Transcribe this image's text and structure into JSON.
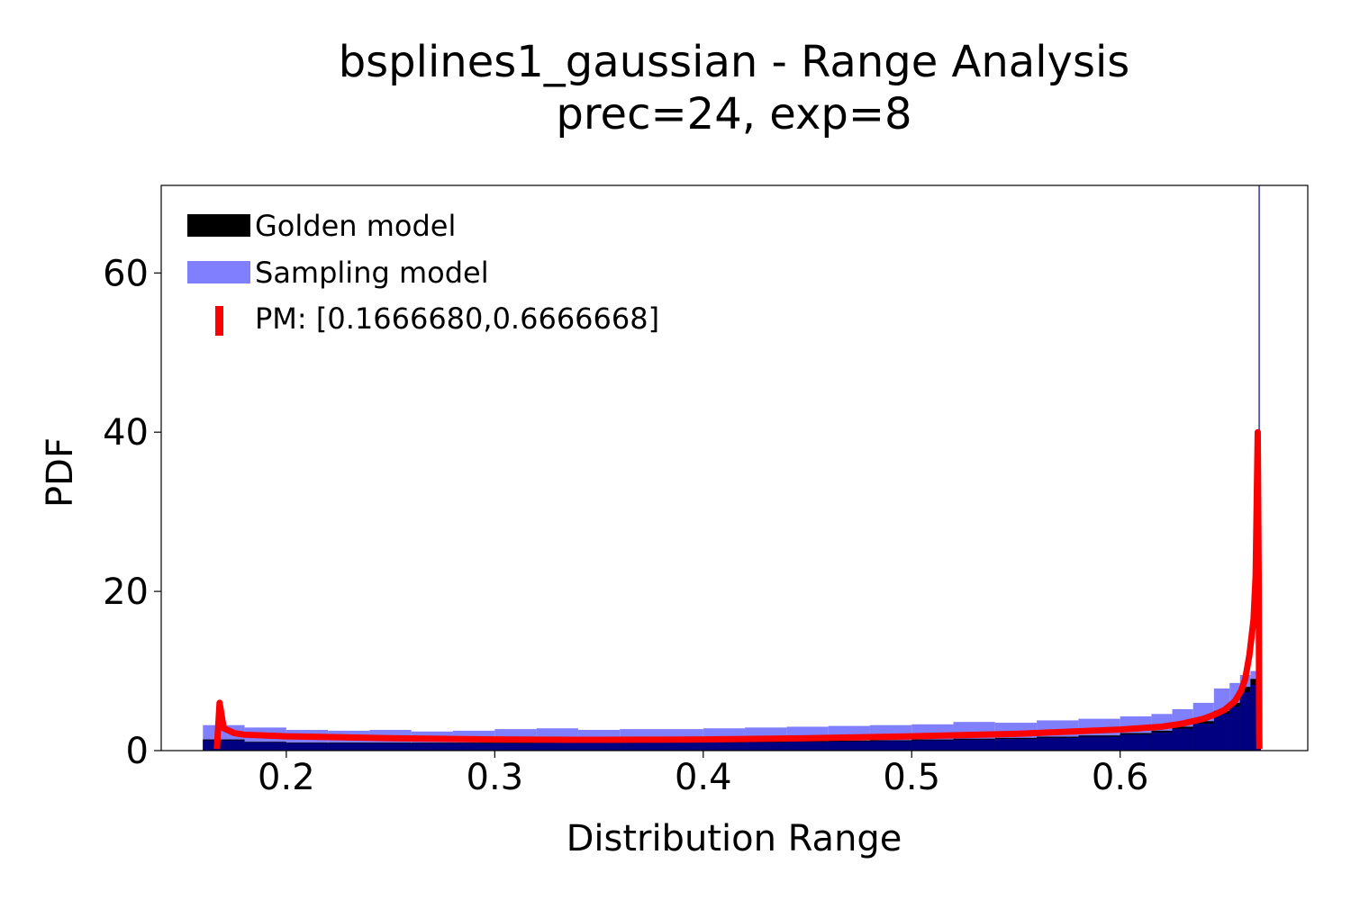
{
  "chart_data": {
    "type": "bar",
    "title": "bsplines1_gaussian - Range Analysis",
    "subtitle": "prec=24, exp=8",
    "xlabel": "Distribution Range",
    "ylabel": "PDF",
    "xlim": [
      0.14,
      0.69
    ],
    "ylim": [
      0,
      71
    ],
    "xticks": [
      0.2,
      0.3,
      0.4,
      0.5,
      0.6
    ],
    "xtick_labels": [
      "0.2",
      "0.3",
      "0.4",
      "0.5",
      "0.6"
    ],
    "yticks": [
      0,
      20,
      40,
      60
    ],
    "ytick_labels": [
      "0",
      "20",
      "40",
      "60"
    ],
    "grid": false,
    "legend_position": "top-left",
    "colors": {
      "golden": "#000000",
      "sampling": "#8080ff",
      "overlap": "#000080",
      "pm": "#ff0000",
      "marker_line": "#000080"
    },
    "vertical_line_x": 0.6667,
    "series": [
      {
        "name": "Golden model",
        "kind": "histogram",
        "x": [
          0.17,
          0.19,
          0.21,
          0.23,
          0.25,
          0.27,
          0.29,
          0.31,
          0.33,
          0.35,
          0.37,
          0.39,
          0.41,
          0.43,
          0.45,
          0.47,
          0.49,
          0.51,
          0.53,
          0.55,
          0.57,
          0.59,
          0.61,
          0.62,
          0.63,
          0.64,
          0.65,
          0.655,
          0.66,
          0.665
        ],
        "values": [
          1.4,
          1.1,
          1.0,
          1.0,
          1.0,
          1.0,
          1.0,
          1.0,
          1.05,
          1.05,
          1.05,
          1.1,
          1.1,
          1.15,
          1.2,
          1.25,
          1.3,
          1.4,
          1.5,
          1.6,
          1.75,
          1.9,
          2.2,
          2.5,
          3.0,
          3.7,
          5.0,
          6.0,
          8.0,
          9.0
        ]
      },
      {
        "name": "Sampling model",
        "kind": "histogram",
        "x": [
          0.17,
          0.19,
          0.21,
          0.23,
          0.25,
          0.27,
          0.29,
          0.31,
          0.33,
          0.35,
          0.37,
          0.39,
          0.41,
          0.43,
          0.45,
          0.47,
          0.49,
          0.51,
          0.53,
          0.55,
          0.57,
          0.59,
          0.61,
          0.62,
          0.63,
          0.64,
          0.65,
          0.655,
          0.66,
          0.665
        ],
        "values": [
          3.2,
          2.9,
          2.6,
          2.5,
          2.6,
          2.4,
          2.5,
          2.7,
          2.8,
          2.6,
          2.7,
          2.7,
          2.8,
          2.9,
          3.0,
          3.1,
          3.2,
          3.3,
          3.6,
          3.5,
          3.8,
          4.0,
          4.3,
          4.6,
          5.2,
          6.0,
          7.8,
          8.5,
          9.5,
          10.0
        ]
      },
      {
        "name": "PM: [0.1666680,0.6666668]",
        "kind": "line",
        "x": [
          0.1667,
          0.168,
          0.17,
          0.175,
          0.18,
          0.19,
          0.2,
          0.25,
          0.3,
          0.35,
          0.4,
          0.45,
          0.5,
          0.55,
          0.6,
          0.62,
          0.63,
          0.64,
          0.645,
          0.65,
          0.655,
          0.658,
          0.66,
          0.662,
          0.664,
          0.665,
          0.666,
          0.6665,
          0.6667,
          0.6668
        ],
        "values": [
          0.2,
          6.0,
          2.8,
          2.2,
          2.0,
          1.9,
          1.8,
          1.55,
          1.4,
          1.35,
          1.4,
          1.55,
          1.8,
          2.1,
          2.65,
          3.0,
          3.4,
          4.0,
          4.5,
          5.1,
          6.2,
          7.5,
          9.0,
          12.0,
          16.5,
          22.0,
          40.0,
          20.0,
          2.0,
          0.2
        ]
      }
    ]
  }
}
